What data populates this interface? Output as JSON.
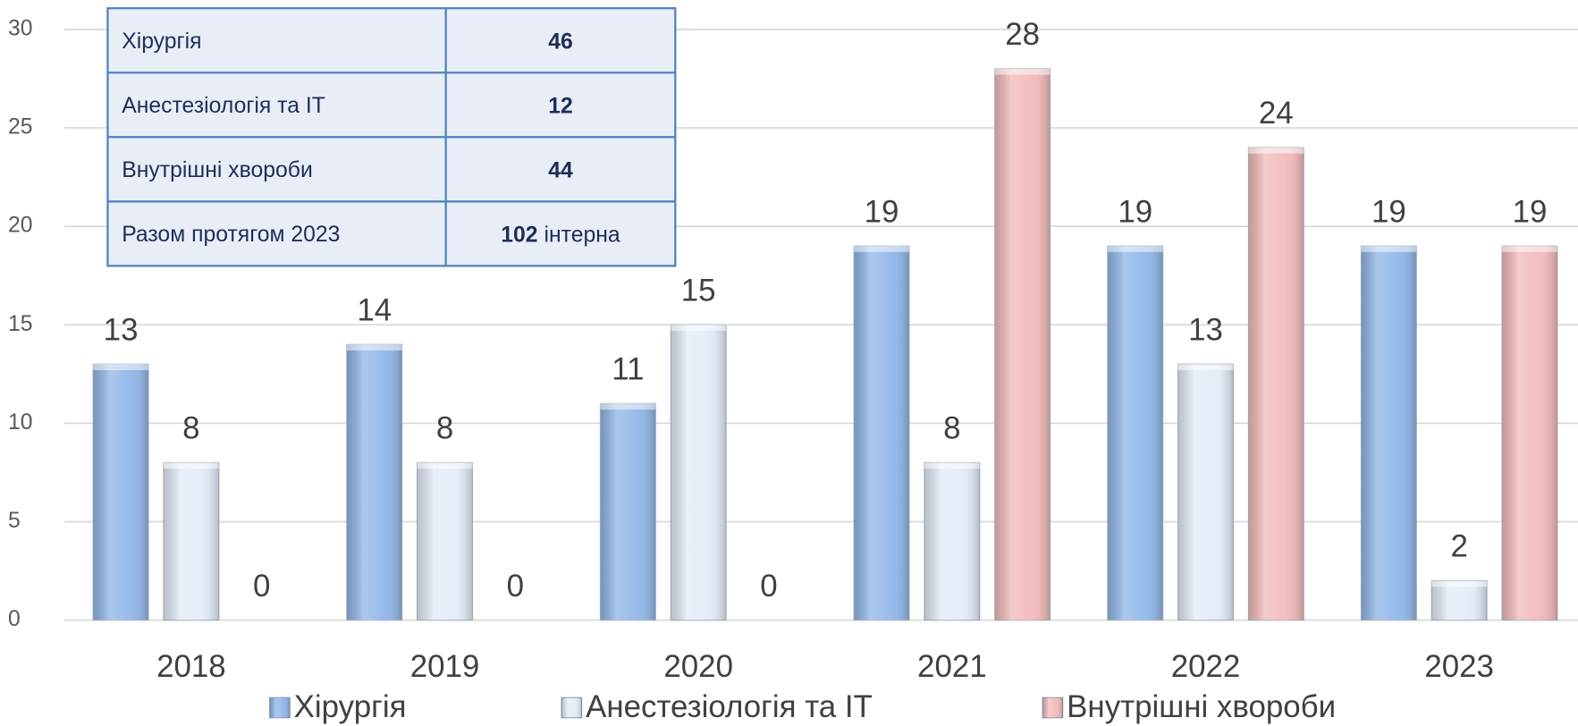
{
  "chart_data": {
    "type": "bar",
    "categories": [
      "2018",
      "2019",
      "2020",
      "2021",
      "2022",
      "2023"
    ],
    "series": [
      {
        "name": "Хірургія",
        "color": "#8fb6e8",
        "values": [
          13,
          14,
          11,
          19,
          19,
          19
        ]
      },
      {
        "name": "Анестезіологія та ІТ",
        "color": "#e3ebf7",
        "values": [
          8,
          8,
          15,
          8,
          13,
          2
        ]
      },
      {
        "name": "Внутрішні хвороби",
        "color": "#f2b9b9",
        "values": [
          0,
          0,
          0,
          28,
          24,
          19
        ]
      }
    ],
    "ylim": [
      0,
      30
    ],
    "yticks": [
      0,
      5,
      10,
      15,
      20,
      25,
      30
    ],
    "grid": true,
    "legend": "bottom"
  },
  "table": {
    "rows": [
      {
        "label": "Хірургія",
        "value": 46
      },
      {
        "label": "Анестезіологія та ІТ",
        "value": 12
      },
      {
        "label": "Внутрішні хвороби",
        "value": 44
      },
      {
        "label": "Разом протягом 2023",
        "value": 102,
        "unit": "інтерна"
      }
    ]
  }
}
